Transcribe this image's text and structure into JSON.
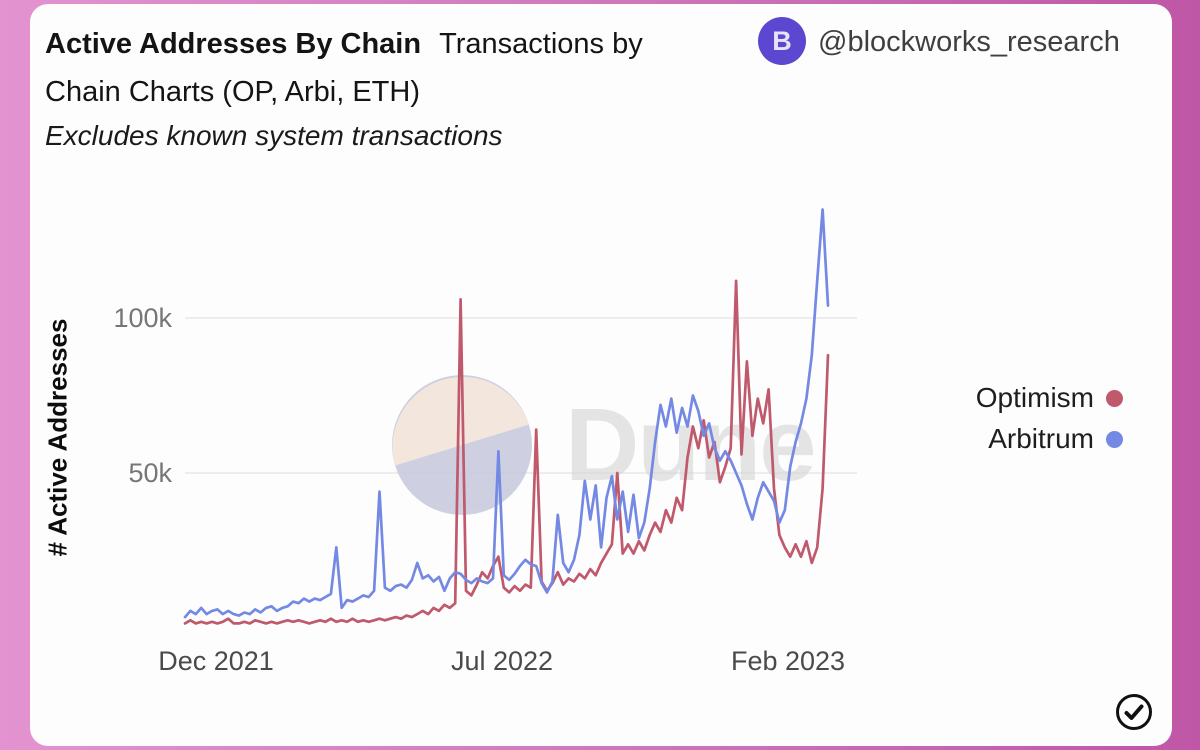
{
  "header": {
    "title_bold": "Active Addresses By Chain",
    "title_rest": "Transactions by Chain Charts (OP, Arbi, ETH)",
    "subtitle": "Excludes known system transactions"
  },
  "badge": {
    "handle": "@blockworks_research",
    "logo_letter": "B",
    "color": "#5c47d0"
  },
  "watermark": {
    "text": "Dune"
  },
  "chart_data": {
    "type": "line",
    "title": "Active Addresses By Chain",
    "ylabel": "# Active Addresses",
    "xlabel": "",
    "x_ticks": [
      "Dec 2021",
      "Jul 2022",
      "Feb 2023"
    ],
    "y_ticks": [
      "100k",
      "50k"
    ],
    "ylim": [
      0,
      140000
    ],
    "grid": true,
    "legend_position": "right",
    "unit": "active addresses (values stored in thousands)",
    "series": [
      {
        "name": "Optimism",
        "color": "#c0596c",
        "values": [
          1.5,
          2.5,
          1.5,
          2,
          1.5,
          2,
          1.5,
          2,
          3,
          1.5,
          1.5,
          2,
          1.5,
          2.5,
          2,
          1.5,
          2,
          1.5,
          2,
          2.5,
          2,
          2.5,
          2,
          1.5,
          2,
          2.5,
          2,
          3,
          2,
          2.5,
          2,
          3,
          2,
          2.5,
          2,
          2.5,
          3,
          2.5,
          3,
          3.5,
          3,
          4,
          3.5,
          4.5,
          5.5,
          4.5,
          6.5,
          5.5,
          7.5,
          6.5,
          8,
          106,
          12,
          10.5,
          14,
          18,
          16,
          20,
          23,
          13,
          11.5,
          13.5,
          12,
          14,
          13,
          64,
          15,
          12,
          14.5,
          18,
          14,
          16,
          15,
          17.5,
          16,
          19,
          17,
          21,
          24,
          27,
          50,
          24,
          27,
          24,
          28,
          25,
          30,
          34,
          31,
          38,
          34,
          42,
          38,
          55,
          65,
          58,
          67,
          55,
          60,
          47,
          52,
          58,
          112,
          56,
          86,
          62,
          74,
          66,
          77,
          45,
          30,
          26,
          23,
          27,
          23,
          28,
          21,
          26,
          45,
          88
        ]
      },
      {
        "name": "Arbitrum",
        "color": "#7489e4",
        "values": [
          3.5,
          5.5,
          4.5,
          6.5,
          4.5,
          5.5,
          6,
          4.5,
          5.5,
          4.5,
          4,
          5,
          4.5,
          6,
          5,
          6.5,
          7,
          5.5,
          6.5,
          7,
          8.5,
          8,
          9.5,
          8.5,
          9.5,
          9,
          10,
          11,
          26,
          6.5,
          9,
          8.5,
          9.5,
          10.5,
          10,
          12,
          44,
          13,
          12,
          13.5,
          14,
          13,
          15.5,
          21,
          16,
          17,
          15,
          16.5,
          12,
          16,
          18,
          17.5,
          15.5,
          14.5,
          16,
          15,
          14.5,
          16,
          57,
          17,
          15.5,
          17.5,
          20,
          22,
          20.5,
          20,
          14.5,
          11.5,
          15,
          36.5,
          21,
          18,
          22,
          30,
          47.5,
          35,
          46,
          26,
          42,
          49,
          35,
          44,
          31,
          43,
          29,
          34,
          45,
          60,
          72,
          65,
          74,
          63,
          71,
          65,
          75,
          70,
          62,
          66,
          58,
          54,
          57,
          54,
          50,
          46,
          40,
          35,
          42,
          47,
          44,
          41,
          34,
          38,
          52,
          60,
          66,
          74,
          88,
          112,
          135,
          104
        ]
      }
    ]
  },
  "footer": {
    "check_label": "verified"
  }
}
